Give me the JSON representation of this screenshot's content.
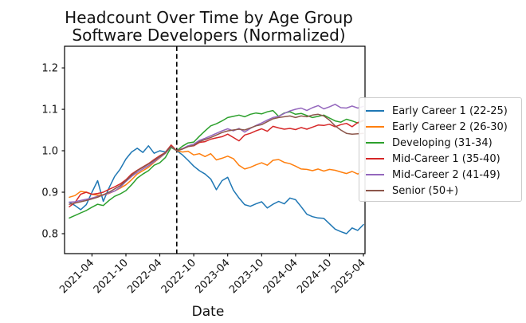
{
  "title": {
    "line1": "Headcount Over Time by Age Group",
    "line2": "Software Developers (Normalized)"
  },
  "chart_data": {
    "type": "line",
    "title": "Headcount Over Time by Age Group — Software Developers (Normalized)",
    "xlabel": "Date",
    "ylabel": "",
    "ylim": [
      0.752,
      1.252
    ],
    "grid": false,
    "legend_position": "outside-right",
    "x_monthly": [
      "2020-12",
      "2021-01",
      "2021-02",
      "2021-03",
      "2021-04",
      "2021-05",
      "2021-06",
      "2021-07",
      "2021-08",
      "2021-09",
      "2021-10",
      "2021-11",
      "2021-12",
      "2022-01",
      "2022-02",
      "2022-03",
      "2022-04",
      "2022-05",
      "2022-06",
      "2022-07",
      "2022-08",
      "2022-09",
      "2022-10",
      "2022-11",
      "2022-12",
      "2023-01",
      "2023-02",
      "2023-03",
      "2023-04",
      "2023-05",
      "2023-06",
      "2023-07",
      "2023-08",
      "2023-09",
      "2023-10",
      "2023-11",
      "2023-12",
      "2024-01",
      "2024-02",
      "2024-03",
      "2024-04",
      "2024-05",
      "2024-06",
      "2024-07",
      "2024-08",
      "2024-09",
      "2024-10",
      "2024-11",
      "2024-12",
      "2025-01",
      "2025-02",
      "2025-03",
      "2025-04"
    ],
    "x_tick_labels": [
      "2021-04",
      "2021-10",
      "2022-04",
      "2022-10",
      "2023-04",
      "2023-10",
      "2024-04",
      "2024-10",
      "2025-04"
    ],
    "y_tick_labels": [
      "0.8",
      "0.9",
      "1.0",
      "1.1",
      "1.2"
    ],
    "y_tick_values": [
      0.8,
      0.9,
      1.0,
      1.1,
      1.2
    ],
    "vline": {
      "x": "2022-07",
      "style": "dashed",
      "color": "#000000"
    },
    "series": [
      {
        "name": "Early Career 1 (22-25)",
        "color": "#1f77b4",
        "values": [
          0.876,
          0.868,
          0.858,
          0.87,
          0.9,
          0.928,
          0.878,
          0.91,
          0.938,
          0.956,
          0.98,
          0.997,
          1.006,
          0.996,
          1.012,
          0.994,
          1.0,
          0.997,
          1.013,
          1.0,
          0.99,
          0.977,
          0.963,
          0.952,
          0.944,
          0.932,
          0.906,
          0.928,
          0.936,
          0.905,
          0.886,
          0.87,
          0.866,
          0.872,
          0.877,
          0.862,
          0.871,
          0.878,
          0.872,
          0.886,
          0.882,
          0.865,
          0.847,
          0.841,
          0.838,
          0.837,
          0.824,
          0.811,
          0.805,
          0.8,
          0.814,
          0.808,
          0.822
        ]
      },
      {
        "name": "Early Career 2 (26-30)",
        "color": "#ff7f0e",
        "values": [
          0.888,
          0.892,
          0.902,
          0.9,
          0.895,
          0.893,
          0.894,
          0.897,
          0.903,
          0.91,
          0.918,
          0.93,
          0.944,
          0.952,
          0.96,
          0.972,
          0.983,
          0.994,
          1.012,
          1.0,
          0.997,
          0.999,
          0.99,
          0.993,
          0.986,
          0.993,
          0.978,
          0.982,
          0.987,
          0.981,
          0.965,
          0.956,
          0.96,
          0.966,
          0.971,
          0.965,
          0.977,
          0.979,
          0.972,
          0.969,
          0.963,
          0.956,
          0.955,
          0.952,
          0.956,
          0.951,
          0.955,
          0.953,
          0.949,
          0.945,
          0.95,
          0.944,
          0.953
        ]
      },
      {
        "name": "Developing (31-34)",
        "color": "#2ca02c",
        "values": [
          0.838,
          0.844,
          0.85,
          0.856,
          0.864,
          0.871,
          0.868,
          0.88,
          0.89,
          0.896,
          0.904,
          0.918,
          0.934,
          0.944,
          0.952,
          0.965,
          0.971,
          0.984,
          1.008,
          1.0,
          1.011,
          1.019,
          1.021,
          1.035,
          1.048,
          1.06,
          1.065,
          1.072,
          1.08,
          1.083,
          1.086,
          1.082,
          1.088,
          1.091,
          1.089,
          1.094,
          1.097,
          1.083,
          1.091,
          1.094,
          1.088,
          1.09,
          1.085,
          1.08,
          1.083,
          1.086,
          1.079,
          1.072,
          1.069,
          1.076,
          1.072,
          1.067,
          1.072
        ]
      },
      {
        "name": "Mid-Career 1 (35-40)",
        "color": "#d62728",
        "values": [
          0.865,
          0.875,
          0.895,
          0.9,
          0.895,
          0.897,
          0.9,
          0.907,
          0.913,
          0.92,
          0.93,
          0.944,
          0.953,
          0.961,
          0.969,
          0.979,
          0.988,
          0.996,
          1.014,
          1.0,
          1.005,
          1.01,
          1.012,
          1.02,
          1.022,
          1.028,
          1.031,
          1.034,
          1.04,
          1.032,
          1.024,
          1.038,
          1.042,
          1.048,
          1.053,
          1.047,
          1.059,
          1.055,
          1.052,
          1.054,
          1.051,
          1.056,
          1.052,
          1.057,
          1.062,
          1.061,
          1.064,
          1.058,
          1.063,
          1.066,
          1.058,
          1.068,
          1.074
        ]
      },
      {
        "name": "Mid-Career 2 (41-49)",
        "color": "#9467bd",
        "values": [
          0.876,
          0.877,
          0.88,
          0.883,
          0.886,
          0.89,
          0.893,
          0.898,
          0.903,
          0.912,
          0.926,
          0.938,
          0.948,
          0.956,
          0.964,
          0.974,
          0.984,
          0.994,
          1.01,
          1.0,
          1.005,
          1.012,
          1.016,
          1.025,
          1.03,
          1.036,
          1.042,
          1.048,
          1.053,
          1.048,
          1.054,
          1.045,
          1.054,
          1.061,
          1.067,
          1.074,
          1.08,
          1.083,
          1.09,
          1.096,
          1.1,
          1.103,
          1.097,
          1.104,
          1.109,
          1.101,
          1.106,
          1.112,
          1.104,
          1.103,
          1.108,
          1.103,
          1.107
        ]
      },
      {
        "name": "Senior (50+)",
        "color": "#8c564b",
        "values": [
          0.871,
          0.874,
          0.877,
          0.88,
          0.884,
          0.888,
          0.894,
          0.9,
          0.908,
          0.916,
          0.928,
          0.941,
          0.952,
          0.96,
          0.968,
          0.977,
          0.986,
          0.995,
          1.011,
          1.0,
          1.004,
          1.01,
          1.013,
          1.022,
          1.027,
          1.032,
          1.038,
          1.044,
          1.048,
          1.05,
          1.052,
          1.05,
          1.055,
          1.06,
          1.063,
          1.07,
          1.077,
          1.08,
          1.082,
          1.084,
          1.08,
          1.084,
          1.082,
          1.086,
          1.088,
          1.084,
          1.074,
          1.06,
          1.05,
          1.042,
          1.04,
          1.041,
          1.042
        ]
      }
    ]
  }
}
